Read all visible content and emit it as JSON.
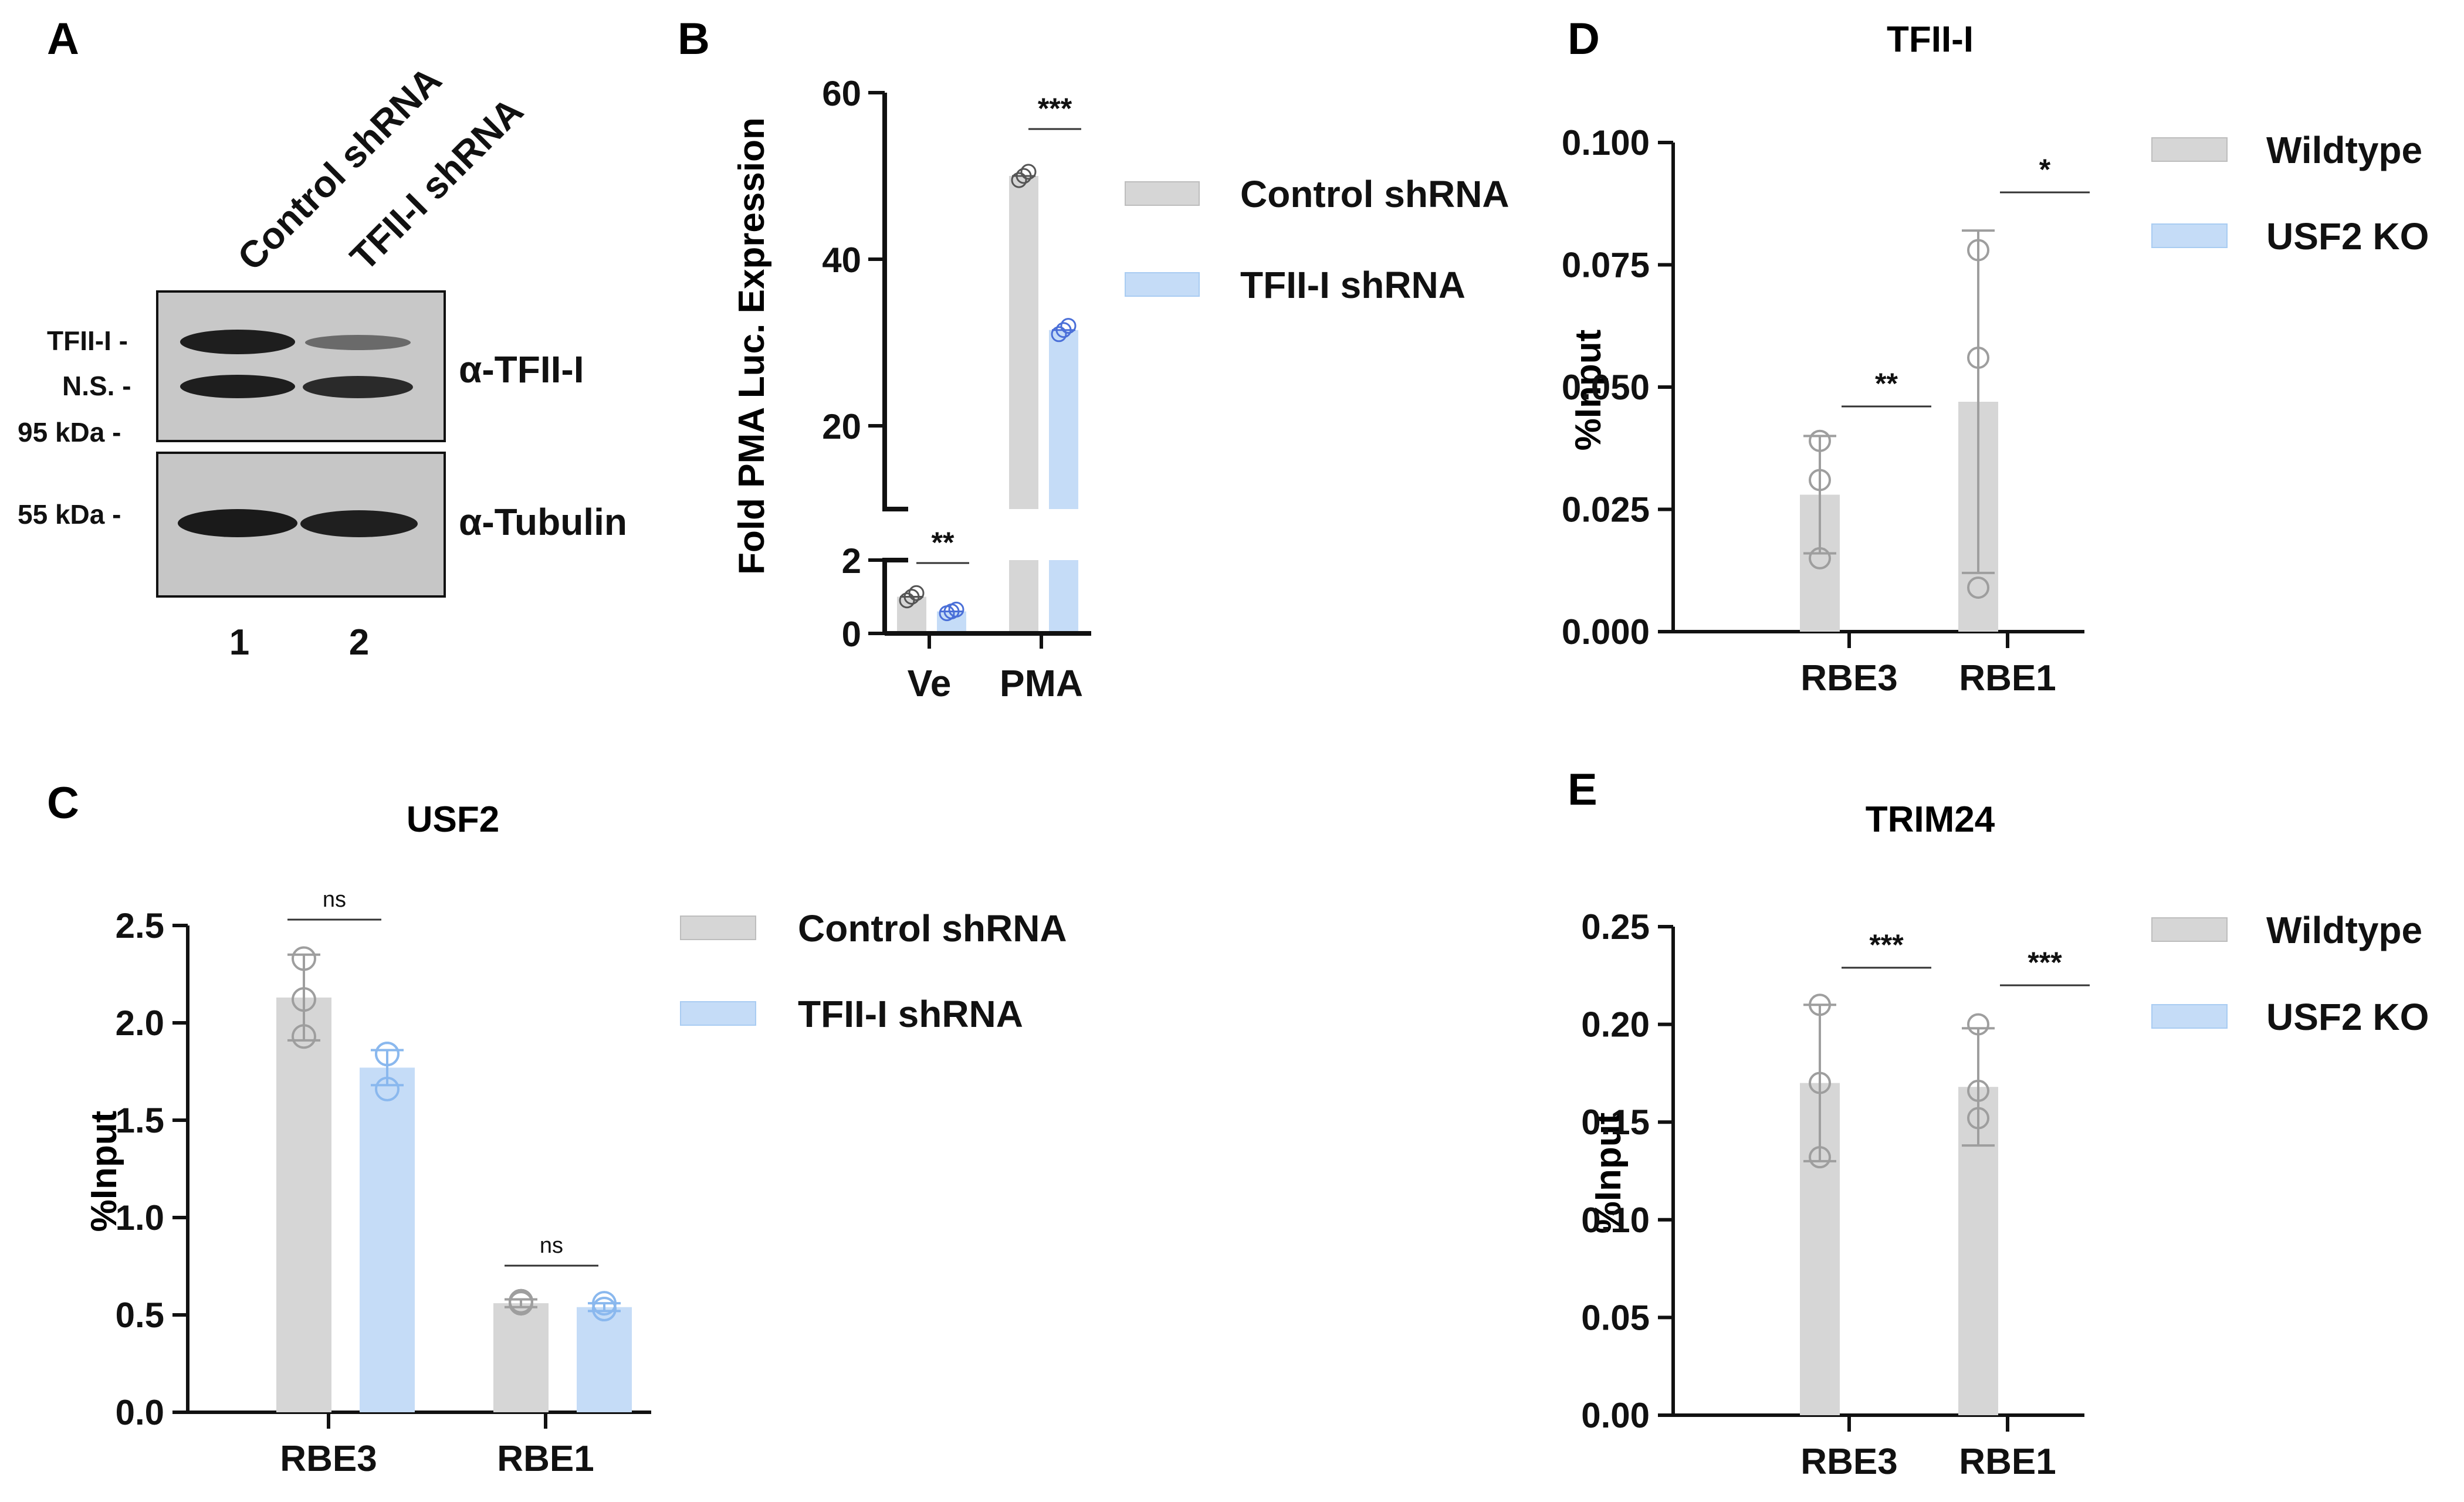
{
  "colors": {
    "control": "#d6d6d6",
    "control_stroke": "#9e9e9e",
    "treat": "#c5dcf7",
    "treat_stroke": "#8ab8ee",
    "axis": "#111111",
    "blot_bg": "#c8c8c8",
    "band": "#1e1e1e"
  },
  "panel_a": {
    "letter": "A",
    "lanes": [
      "Control shRNA",
      "TFII-I shRNA"
    ],
    "lane_numbers": [
      "1",
      "2"
    ],
    "left_labels": [
      "TFII-I -",
      "N.S. -",
      "95 kDa -",
      "55 kDa -"
    ],
    "antibodies": [
      "α-TFII-I",
      "α-Tubulin"
    ]
  },
  "chart_data": [
    {
      "panel": "B",
      "type": "bar",
      "title": "",
      "categories": [
        "Ve",
        "PMA"
      ],
      "ylabel": "Fold PMA Luc. Expression",
      "ylim_lower": [
        0,
        2
      ],
      "ylim_upper": [
        10,
        60
      ],
      "ticks_lower": [
        "0",
        "2"
      ],
      "ticks_upper": [
        "20",
        "40",
        "60"
      ],
      "axis_break": true,
      "series": [
        {
          "name": "Control shRNA",
          "values": [
            1.0,
            50.0
          ],
          "points": [
            [
              0.9,
              1.0,
              1.1
            ],
            [
              49.5,
              50.0,
              50.5
            ]
          ]
        },
        {
          "name": "TFII-I shRNA",
          "values": [
            0.6,
            31.5
          ],
          "points": [
            [
              0.55,
              0.6,
              0.65
            ],
            [
              31.0,
              31.5,
              32.0
            ]
          ]
        }
      ],
      "significance": [
        "**",
        "***"
      ],
      "legend_position": "right"
    },
    {
      "panel": "C",
      "type": "bar",
      "title": "USF2",
      "categories": [
        "RBE3",
        "RBE1"
      ],
      "ylabel": "%Input",
      "ylim": [
        0,
        2.5
      ],
      "ticks": [
        "0.0",
        "0.5",
        "1.0",
        "1.5",
        "2.0",
        "2.5"
      ],
      "series": [
        {
          "name": "Control shRNA",
          "values": [
            2.13,
            0.56
          ],
          "errors": [
            0.22,
            0.02
          ],
          "points": [
            [
              2.33,
              2.12,
              1.93
            ],
            [
              0.57,
              0.57,
              0.56
            ]
          ]
        },
        {
          "name": "TFII-I shRNA",
          "values": [
            1.77,
            0.54
          ],
          "errors": [
            0.09,
            0.02
          ],
          "points": [
            [
              1.84,
              1.84,
              1.66
            ],
            [
              0.56,
              0.53,
              0.53
            ]
          ]
        }
      ],
      "significance": [
        "ns",
        "ns"
      ],
      "legend_position": "right"
    },
    {
      "panel": "D",
      "type": "bar",
      "title": "TFII-I",
      "categories": [
        "RBE3",
        "RBE1"
      ],
      "ylabel": "%Input",
      "ylim": [
        0,
        0.1
      ],
      "ticks": [
        "0.000",
        "0.025",
        "0.050",
        "0.075",
        "0.100"
      ],
      "series": [
        {
          "name": "Wildtype",
          "values": [
            0.028,
            0.047
          ],
          "errors": [
            0.012,
            0.035
          ],
          "points": [
            [
              0.039,
              0.031,
              0.015
            ],
            [
              0.078,
              0.056,
              0.009
            ]
          ]
        },
        {
          "name": "USF2 KO",
          "values": [
            0,
            0
          ],
          "errors": [
            0,
            0
          ],
          "points": [
            [],
            []
          ]
        }
      ],
      "significance": [
        "**",
        "*"
      ],
      "legend_position": "right"
    },
    {
      "panel": "E",
      "type": "bar",
      "title": "TRIM24",
      "categories": [
        "RBE3",
        "RBE1"
      ],
      "ylabel": "%Input",
      "ylim": [
        0,
        0.25
      ],
      "ticks": [
        "0.00",
        "0.05",
        "0.10",
        "0.15",
        "0.20",
        "0.25"
      ],
      "series": [
        {
          "name": "Wildtype",
          "values": [
            0.17,
            0.168
          ],
          "errors": [
            0.04,
            0.03
          ],
          "points": [
            [
              0.21,
              0.17,
              0.132
            ],
            [
              0.2,
              0.166,
              0.152
            ]
          ]
        },
        {
          "name": "USF2 KO",
          "values": [
            0,
            0
          ],
          "errors": [
            0,
            0
          ],
          "points": [
            [],
            []
          ]
        }
      ],
      "significance": [
        "***",
        "***"
      ],
      "legend_position": "right"
    }
  ]
}
